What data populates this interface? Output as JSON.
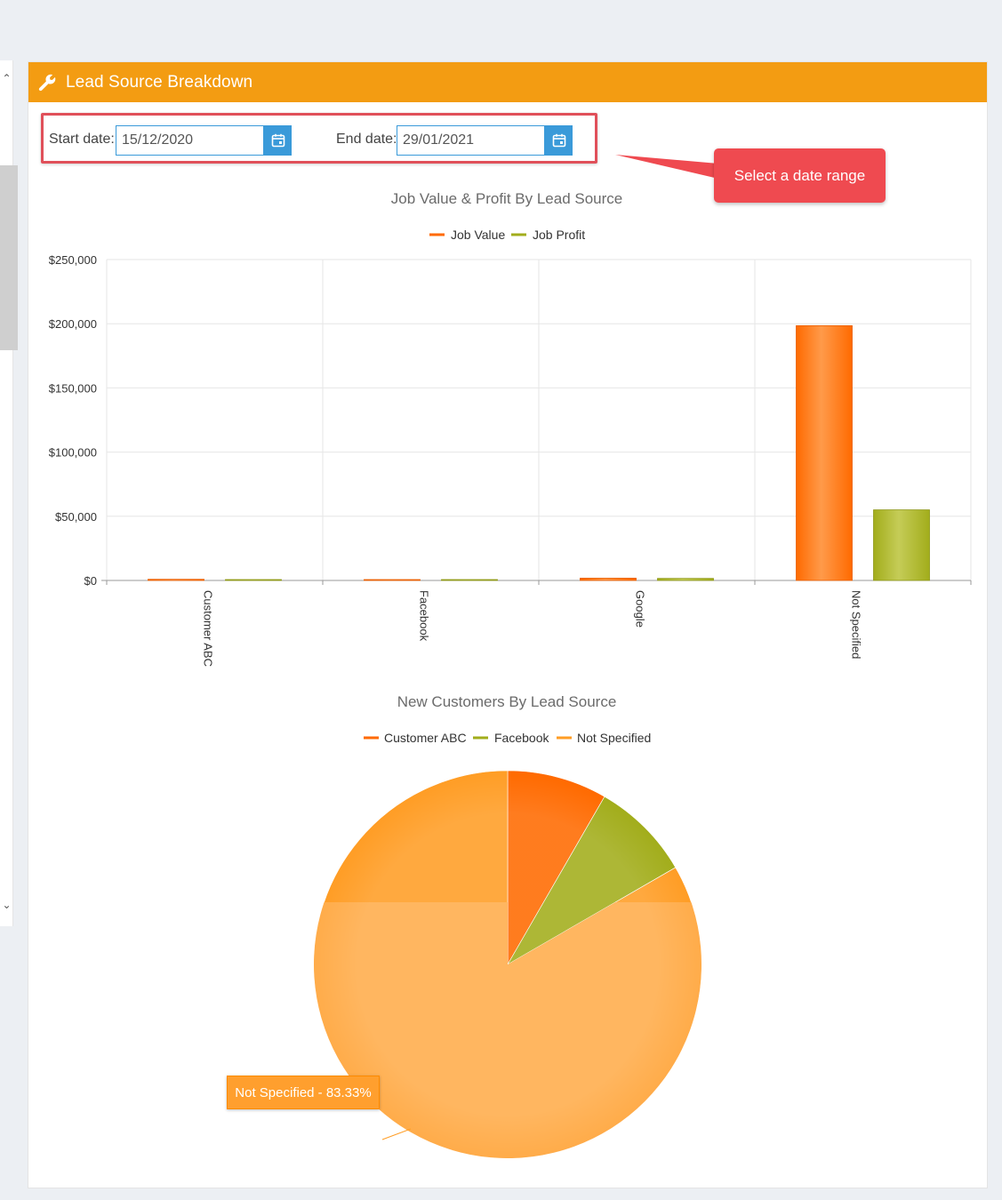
{
  "panel": {
    "title": "Lead Source Breakdown"
  },
  "filters": {
    "start_label": "Start date:",
    "start_value": "15/12/2020",
    "end_label": "End date:",
    "end_value": "29/01/2021"
  },
  "callout": {
    "text": "Select a date range"
  },
  "colors": {
    "header": "#f39c12",
    "job_value": "#ff6a00",
    "job_profit": "#a2ad1b",
    "not_specified": "#ff9d25",
    "highlight": "#ef4a50",
    "calendar_button": "#3a9ad9"
  },
  "chart_data": [
    {
      "type": "bar",
      "title": "Job Value & Profit By Lead Source",
      "categories": [
        "Customer ABC",
        "Facebook",
        "Google",
        "Not Specified"
      ],
      "series": [
        {
          "name": "Job Value",
          "color": "#ff6a00",
          "values": [
            900,
            150,
            1800,
            198500
          ]
        },
        {
          "name": "Job Profit",
          "color": "#a2ad1b",
          "values": [
            250,
            80,
            1600,
            55000
          ]
        }
      ],
      "yticks": [
        "$0",
        "$50,000",
        "$100,000",
        "$150,000",
        "$200,000",
        "$250,000"
      ],
      "ylim": [
        0,
        250000
      ],
      "legend": "top-center",
      "grid": true
    },
    {
      "type": "pie",
      "title": "New Customers By Lead Source",
      "labels": [
        "Customer ABC",
        "Facebook",
        "Not Specified"
      ],
      "values": [
        8.33,
        8.33,
        83.33
      ],
      "colors": [
        "#ff6a00",
        "#a2ad1b",
        "#ff9d25"
      ],
      "data_label": "Not Specified - 83.33%",
      "legend": "top-center"
    }
  ]
}
